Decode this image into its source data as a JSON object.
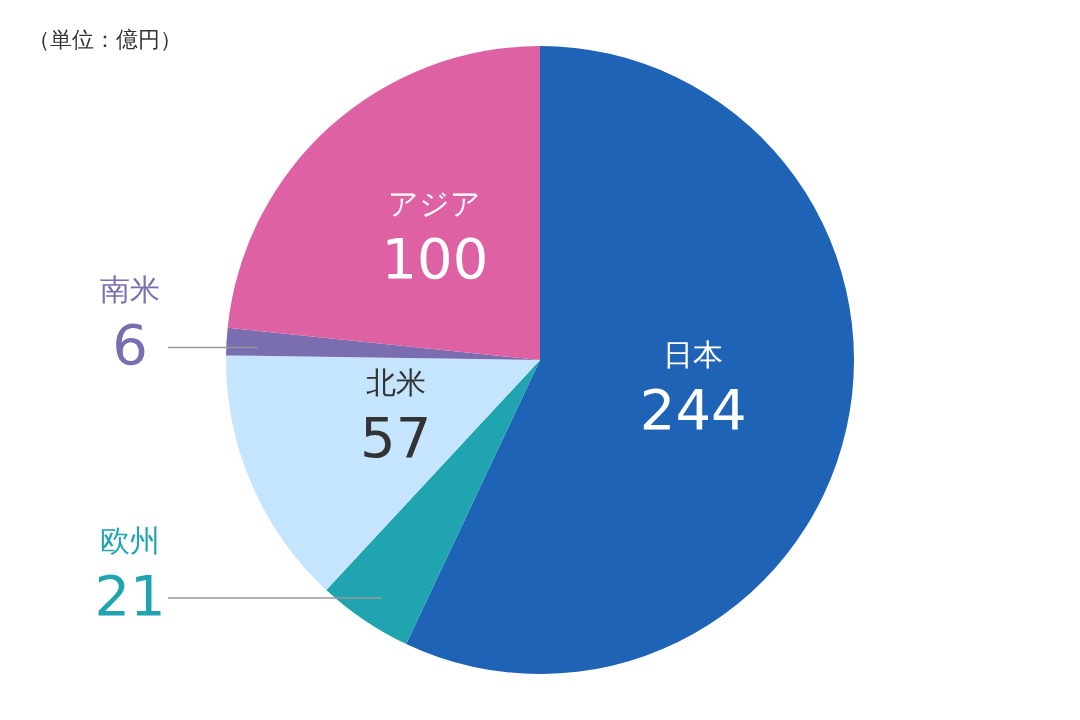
{
  "chart_data": {
    "type": "pie",
    "categories": [
      "日本",
      "欧州",
      "北米",
      "南米",
      "アジア"
    ],
    "values": [
      244,
      21,
      57,
      6,
      100
    ],
    "colors": [
      "#1e63b6",
      "#20a4b0",
      "#c5e4fd",
      "#7a6db0",
      "#de62a3"
    ],
    "data_labels": true,
    "annotations": [
      "（単位：億円）"
    ]
  }
}
